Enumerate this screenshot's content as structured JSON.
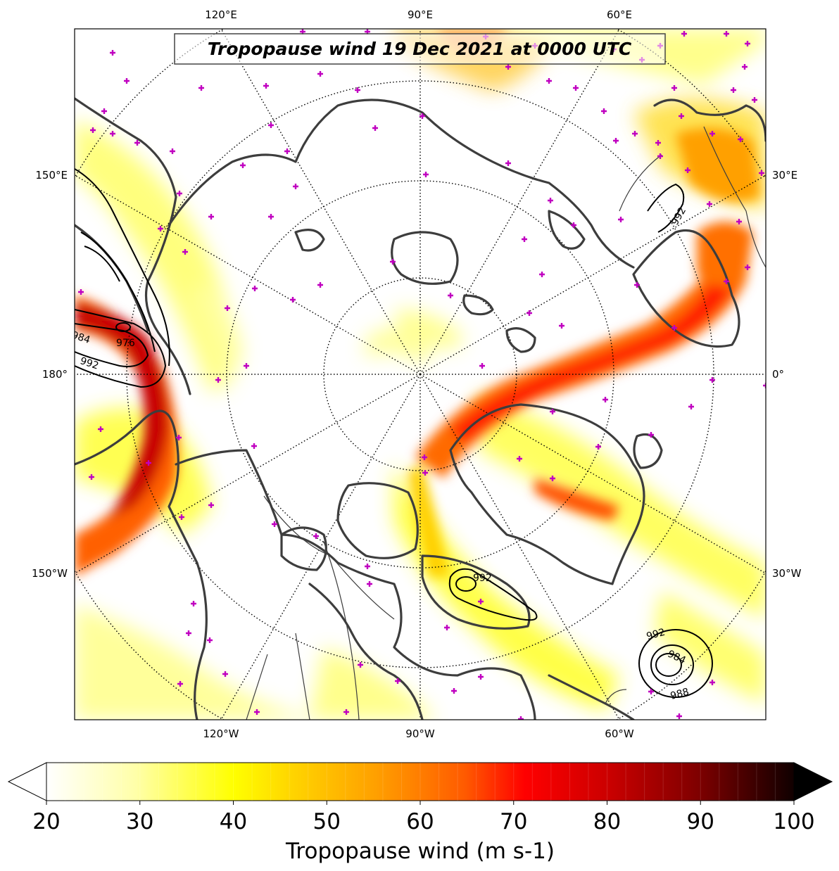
{
  "title": "Tropopause wind 19 Dec 2021 at 0000 UTC",
  "longitude_labels": {
    "top": [
      "120°E",
      "90°E",
      "60°E"
    ],
    "bottom": [
      "120°W",
      "90°W",
      "60°W"
    ],
    "left": [
      "150°E",
      "180°",
      "150°W"
    ],
    "right": [
      "30°E",
      "0°",
      "30°W"
    ]
  },
  "isobars": {
    "units": "hPa",
    "labels": [
      "984",
      "976",
      "992",
      "992",
      "992",
      "992",
      "984",
      "988"
    ]
  },
  "colorbar": {
    "title": "Tropopause wind (m s-1)",
    "min": 20,
    "max": 100,
    "step": 2,
    "tick_labels": [
      "20",
      "30",
      "40",
      "50",
      "60",
      "70",
      "80",
      "90",
      "100"
    ],
    "colormap": [
      "#ffffff",
      "#ffff80",
      "#ffff00",
      "#ffd400",
      "#ffa500",
      "#ff6a00",
      "#ff0000",
      "#d40000",
      "#8b0000",
      "#400000",
      "#000000"
    ],
    "extend": "both"
  },
  "markers": {
    "color": "#c000c0",
    "symbol": "+"
  },
  "colors": {
    "coastline": "#3d3d3d",
    "isobar": "#000000"
  }
}
